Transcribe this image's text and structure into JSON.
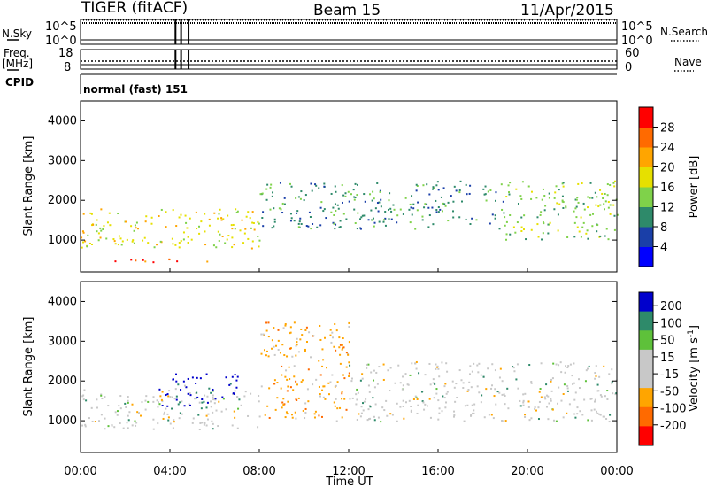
{
  "header": {
    "radar": "TIGER (fitACF)",
    "beam": "Beam 15",
    "date": "11/Apr/2015"
  },
  "left_labels": {
    "nsky": "N.Sky",
    "freq": "Freq.",
    "freq_unit": "[MHz]",
    "cpid": "CPID"
  },
  "right_labels": {
    "nsearch": "N.Search",
    "nave": "Nave"
  },
  "cpid_text": "normal (fast) 151",
  "colors": {
    "power": [
      "#0000ff",
      "#1a3fa8",
      "#2e8a6a",
      "#7fd24a",
      "#e6e000",
      "#ffa500",
      "#ff6a00",
      "#ff0000"
    ],
    "velocity": [
      "#ff0000",
      "#ff6a00",
      "#ffa500",
      "#c8c8c8",
      "#c8c8c8",
      "#5ec13a",
      "#2e8a6a",
      "#0000cc"
    ]
  },
  "chart_data": [
    {
      "type": "line",
      "name": "noise-panel",
      "left_axis": {
        "label": "N.Sky",
        "ticks": [
          "10^5",
          "10^0"
        ]
      },
      "right_axis": {
        "label": "N.Search",
        "ticks": [
          "10^5",
          "10^0"
        ]
      },
      "event_markers_ut": [
        "04:15",
        "04:30",
        "04:50"
      ]
    },
    {
      "type": "line",
      "name": "freq-panel",
      "left_axis": {
        "label": "Freq. [MHz]",
        "ticks": [
          "18",
          "8"
        ]
      },
      "right_axis": {
        "label": "Nave",
        "ticks": [
          "60",
          "0"
        ]
      },
      "event_markers_ut": [
        "04:15",
        "04:30",
        "04:50"
      ]
    },
    {
      "type": "heatmap",
      "name": "power",
      "ylabel": "Slant Range [km]",
      "yticks": [
        "1000",
        "2000",
        "3000",
        "4000"
      ],
      "ylim": [
        200,
        4500
      ],
      "xlabel": "Time UT",
      "xticks": [
        "00:00",
        "04:00",
        "08:00",
        "12:00",
        "16:00",
        "20:00",
        "00:00"
      ],
      "colorbar": {
        "label": "Power [dB]",
        "ticks": [
          "4",
          "8",
          "12",
          "16",
          "20",
          "24",
          "28"
        ]
      },
      "features": [
        {
          "x_start": "00:00",
          "x_end": "08:00",
          "slant_range_km": [
            800,
            1800
          ],
          "level_db": 20
        },
        {
          "x_start": "00:45",
          "x_end": "06:00",
          "slant_range_km": [
            450,
            550
          ],
          "level_db": 28
        },
        {
          "x_start": "08:00",
          "x_end": "19:00",
          "slant_range_km": [
            1300,
            2500
          ],
          "level_db": 12
        },
        {
          "x_start": "19:00",
          "x_end": "24:00",
          "slant_range_km": [
            1000,
            2500
          ],
          "level_db": 16
        }
      ]
    },
    {
      "type": "heatmap",
      "name": "velocity",
      "ylabel": "Slant Range [km]",
      "yticks": [
        "1000",
        "2000",
        "3000",
        "4000"
      ],
      "ylim": [
        200,
        4500
      ],
      "xlabel": "Time UT",
      "xticks": [
        "00:00",
        "04:00",
        "08:00",
        "12:00",
        "16:00",
        "20:00",
        "00:00"
      ],
      "colorbar": {
        "label": "Velocity [m s-1]",
        "ticks": [
          "200",
          "100",
          "50",
          "15",
          "-15",
          "-50",
          "-100",
          "-200"
        ]
      },
      "features": [
        {
          "x_start": "00:00",
          "x_end": "08:00",
          "slant_range_km": [
            800,
            1800
          ],
          "velocity": 0
        },
        {
          "x_start": "03:30",
          "x_end": "07:00",
          "slant_range_km": [
            1300,
            2200
          ],
          "velocity": 150
        },
        {
          "x_start": "08:00",
          "x_end": "12:00",
          "slant_range_km": [
            1000,
            3500
          ],
          "velocity": -50
        },
        {
          "x_start": "12:00",
          "x_end": "24:00",
          "slant_range_km": [
            1000,
            2500
          ],
          "velocity": 0
        }
      ]
    }
  ],
  "axis": {
    "xticks": [
      "00:00",
      "04:00",
      "08:00",
      "12:00",
      "16:00",
      "20:00",
      "00:00"
    ],
    "xlabel": "Time UT",
    "power_ticks": [
      "4",
      "8",
      "12",
      "16",
      "20",
      "24",
      "28"
    ],
    "power_label": "Power [dB]",
    "velocity_ticks": [
      "200",
      "100",
      "50",
      "15",
      "-15",
      "-50",
      "-100",
      "-200"
    ],
    "velocity_label_main": "Velocity [m s",
    "velocity_label_sup": "-1",
    "velocity_label_end": "]",
    "range_ticks": [
      "1000",
      "2000",
      "3000",
      "4000"
    ],
    "range_label": "Slant Range [km]",
    "nsky_ticks": [
      "10^5",
      "10^0"
    ],
    "freq_ticks": [
      "18",
      "8"
    ],
    "nsearch_ticks": [
      "10^5",
      "10^0"
    ],
    "nave_ticks": [
      "60",
      "0"
    ]
  }
}
